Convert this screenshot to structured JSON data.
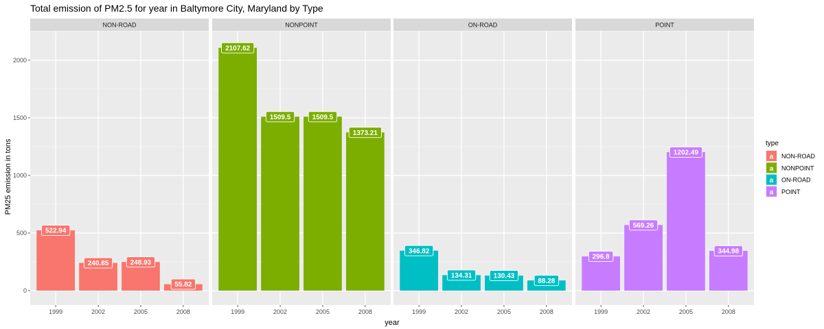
{
  "chart_data": {
    "type": "bar",
    "title": "Total emission of PM2.5 for year in Baltymore City, Maryland by Type",
    "xlabel": "year",
    "ylabel": "PM25 emission in tons",
    "ylim": [
      0,
      2200
    ],
    "yticks": [
      0,
      500,
      1000,
      1500,
      2000
    ],
    "categories": [
      "1999",
      "2002",
      "2005",
      "2008"
    ],
    "facets": [
      {
        "name": "NON-ROAD",
        "color": "#F8766D",
        "values": [
          522.94,
          240.85,
          248.93,
          55.82
        ],
        "labels": [
          "522.94",
          "240.85",
          "248.93",
          "55.82"
        ]
      },
      {
        "name": "NONPOINT",
        "color": "#7CAE00",
        "values": [
          2107.62,
          1509.5,
          1509.5,
          1373.21
        ],
        "labels": [
          "2107.62",
          "1509.5",
          "1509.5",
          "1373.21"
        ]
      },
      {
        "name": "ON-ROAD",
        "color": "#00BFC4",
        "values": [
          346.82,
          134.31,
          130.43,
          88.28
        ],
        "labels": [
          "346.82",
          "134.31",
          "130.43",
          "88.28"
        ]
      },
      {
        "name": "POINT",
        "color": "#C77CFF",
        "values": [
          296.8,
          569.26,
          1202.49,
          344.98
        ],
        "labels": [
          "296.8",
          "569.26",
          "1202.49",
          "344.98"
        ]
      }
    ],
    "legend": {
      "title": "type",
      "position": "right",
      "key_glyph": "a",
      "items": [
        "NON-ROAD",
        "NONPOINT",
        "ON-ROAD",
        "POINT"
      ]
    },
    "grid": true
  }
}
